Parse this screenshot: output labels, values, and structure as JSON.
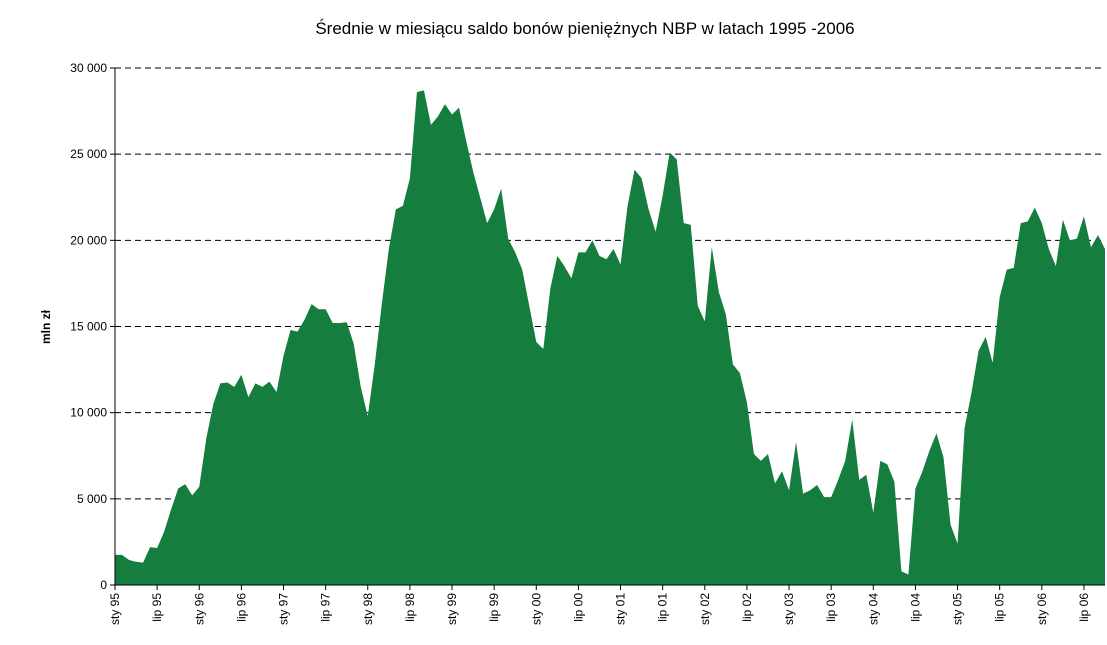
{
  "chart_data": {
    "type": "area",
    "title": "Średnie w miesiącu  saldo bonów pieniężnych NBP w latach 1995 -2006",
    "y_label": "mln zł",
    "color": "#157d3e",
    "categories": [
      "sty 95",
      null,
      null,
      null,
      null,
      null,
      "lip 95",
      null,
      null,
      null,
      null,
      null,
      "sty 96",
      null,
      null,
      null,
      null,
      null,
      "lip 96",
      null,
      null,
      null,
      null,
      null,
      "sty 97",
      null,
      null,
      null,
      null,
      null,
      "lip 97",
      null,
      null,
      null,
      null,
      null,
      "sty 98",
      null,
      null,
      null,
      null,
      null,
      "lip 98",
      null,
      null,
      null,
      null,
      null,
      "sty 99",
      null,
      null,
      null,
      null,
      null,
      "lip 99",
      null,
      null,
      null,
      null,
      null,
      "sty 00",
      null,
      null,
      null,
      null,
      null,
      "lip 00",
      null,
      null,
      null,
      null,
      null,
      "sty 01",
      null,
      null,
      null,
      null,
      null,
      "lip 01",
      null,
      null,
      null,
      null,
      null,
      "sty 02",
      null,
      null,
      null,
      null,
      null,
      "lip 02",
      null,
      null,
      null,
      null,
      null,
      "sty 03",
      null,
      null,
      null,
      null,
      null,
      "lip 03",
      null,
      null,
      null,
      null,
      null,
      "sty 04",
      null,
      null,
      null,
      null,
      null,
      "lip 04",
      null,
      null,
      null,
      null,
      null,
      "sty 05",
      null,
      null,
      null,
      null,
      null,
      "lip 05",
      null,
      null,
      null,
      null,
      null,
      "sty 06",
      null,
      null,
      null,
      null,
      null,
      "lip 06",
      null,
      null,
      null
    ],
    "values": [
      1750,
      1750,
      1450,
      1350,
      1300,
      2200,
      2150,
      3100,
      4400,
      5600,
      5850,
      5200,
      5700,
      8500,
      10500,
      11700,
      11750,
      11500,
      12200,
      10900,
      11700,
      11500,
      11800,
      11200,
      13300,
      14800,
      14700,
      15400,
      16300,
      16000,
      16000,
      15200,
      15200,
      15250,
      14000,
      11500,
      9800,
      12800,
      16300,
      19500,
      21800,
      22000,
      23600,
      28600,
      28700,
      26700,
      27200,
      27900,
      27300,
      27700,
      25800,
      24000,
      22500,
      21000,
      21800,
      23000,
      20100,
      19300,
      18300,
      16200,
      14100,
      13700,
      17200,
      19100,
      18500,
      17800,
      19300,
      19300,
      20000,
      19100,
      18900,
      19500,
      18600,
      22000,
      24100,
      23600,
      21800,
      20500,
      22600,
      25100,
      24700,
      21000,
      20900,
      16200,
      15300,
      19600,
      17000,
      15700,
      12800,
      12300,
      10600,
      7600,
      7200,
      7600,
      5900,
      6600,
      5500,
      8300,
      5300,
      5500,
      5800,
      5100,
      5100,
      6100,
      7200,
      9600,
      6100,
      6400,
      4200,
      7200,
      7000,
      6000,
      800,
      600,
      5600,
      6600,
      7800,
      8800,
      7400,
      3500,
      2400,
      9100,
      11200,
      13600,
      14400,
      12900,
      16700,
      18300,
      18400,
      21000,
      21100,
      21900,
      21000,
      19500,
      18500,
      21200,
      20000,
      20100,
      21400,
      19600,
      20300,
      19500
    ],
    "ylim": [
      0,
      30000
    ],
    "yticks": [
      0,
      {
        "value": 5000,
        "label": "5 000"
      },
      {
        "value": 10000,
        "label": "10 000"
      },
      {
        "value": 15000,
        "label": "15 000"
      },
      {
        "value": 20000,
        "label": "20 000"
      },
      {
        "value": 25000,
        "label": "25 000"
      },
      {
        "value": 30000,
        "label": "30 000"
      }
    ],
    "grid": true
  }
}
